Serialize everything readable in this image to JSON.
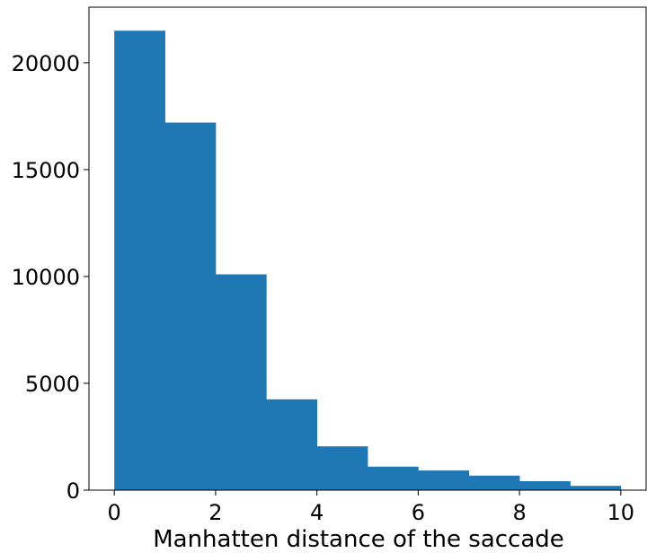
{
  "chart_data": {
    "type": "bar",
    "title": "",
    "xlabel": "Manhatten distance of the saccade",
    "ylabel": "",
    "bin_edges": [
      0,
      1,
      2,
      3,
      4,
      5,
      6,
      7,
      8,
      9,
      10
    ],
    "values": [
      21500,
      17200,
      10100,
      4250,
      2050,
      1100,
      920,
      680,
      420,
      200
    ],
    "xlim": [
      -0.5,
      10.5
    ],
    "ylim": [
      0,
      22600
    ],
    "xticks": [
      0,
      2,
      4,
      6,
      8,
      10
    ],
    "yticks": [
      0,
      5000,
      10000,
      15000,
      20000
    ],
    "bar_color": "#1f77b4",
    "grid": false,
    "legend": "none"
  }
}
